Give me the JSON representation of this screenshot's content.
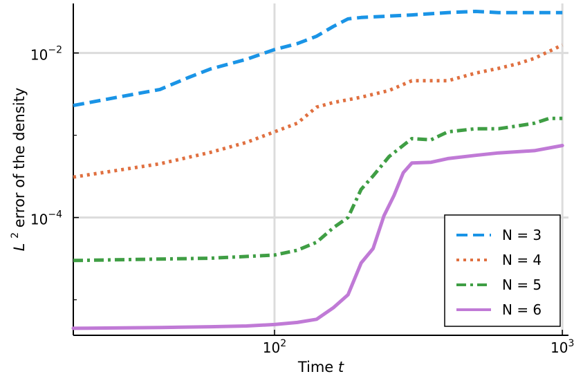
{
  "chart_data": {
    "type": "line",
    "xscale": "log",
    "yscale": "log",
    "xlabel": {
      "main": "Time",
      "var": "t"
    },
    "ylabel": {
      "prefix": "L",
      "sup": "2",
      "rest": " error of the density"
    },
    "xlim": [
      20,
      1050
    ],
    "ylim": [
      3.7e-06,
      0.04
    ],
    "grid": true,
    "legend_position": "bottom-right",
    "x_ticks": [
      {
        "value": 100,
        "base": "10",
        "exp": "2"
      },
      {
        "value": 1000,
        "base": "10",
        "exp": "3"
      }
    ],
    "y_ticks": [
      {
        "value": 0.0001,
        "base": "10",
        "exp": "−4"
      },
      {
        "value": 0.01,
        "base": "10",
        "exp": "−2"
      }
    ],
    "series": [
      {
        "name": "N = 3",
        "color": "#1a94e6",
        "style": "dash",
        "x": [
          20,
          30,
          40,
          50,
          60,
          80,
          100,
          120,
          140,
          160,
          180,
          200,
          300,
          400,
          500,
          600,
          800,
          1000
        ],
        "y": [
          0.0023,
          0.003,
          0.0036,
          0.005,
          0.0064,
          0.0084,
          0.011,
          0.013,
          0.016,
          0.021,
          0.026,
          0.027,
          0.029,
          0.031,
          0.032,
          0.031,
          0.031,
          0.031
        ]
      },
      {
        "name": "N = 4",
        "color": "#e07040",
        "style": "dot",
        "x": [
          20,
          40,
          60,
          80,
          100,
          120,
          140,
          160,
          180,
          200,
          250,
          300,
          400,
          500,
          600,
          700,
          800,
          1000
        ],
        "y": [
          0.00031,
          0.00045,
          0.00062,
          0.00082,
          0.0011,
          0.0014,
          0.0022,
          0.0025,
          0.0027,
          0.0029,
          0.0035,
          0.0046,
          0.0046,
          0.0057,
          0.0065,
          0.0074,
          0.0086,
          0.0125
        ]
      },
      {
        "name": "N = 5",
        "color": "#3f9e44",
        "style": "dashdot",
        "x": [
          20,
          60,
          100,
          120,
          140,
          160,
          180,
          200,
          220,
          250,
          300,
          350,
          400,
          500,
          600,
          700,
          800,
          900,
          1000
        ],
        "y": [
          3e-05,
          3.2e-05,
          3.5e-05,
          4e-05,
          5e-05,
          7.5e-05,
          0.0001,
          0.00022,
          0.00032,
          0.00055,
          0.00091,
          0.00088,
          0.0011,
          0.0012,
          0.0012,
          0.0013,
          0.0014,
          0.0016,
          0.0016
        ]
      },
      {
        "name": "N = 6",
        "color": "#c07ad6",
        "style": "solid",
        "x": [
          20,
          40,
          60,
          80,
          100,
          120,
          140,
          160,
          180,
          200,
          220,
          240,
          260,
          280,
          300,
          350,
          400,
          500,
          600,
          800,
          1000
        ],
        "y": [
          4.5e-06,
          4.6e-06,
          4.7e-06,
          4.8e-06,
          5e-06,
          5.3e-06,
          5.8e-06,
          8e-06,
          1.15e-05,
          2.8e-05,
          4.2e-05,
          0.000105,
          0.000185,
          0.00035,
          0.00046,
          0.00047,
          0.00052,
          0.00057,
          0.00061,
          0.00065,
          0.00075
        ]
      }
    ]
  }
}
